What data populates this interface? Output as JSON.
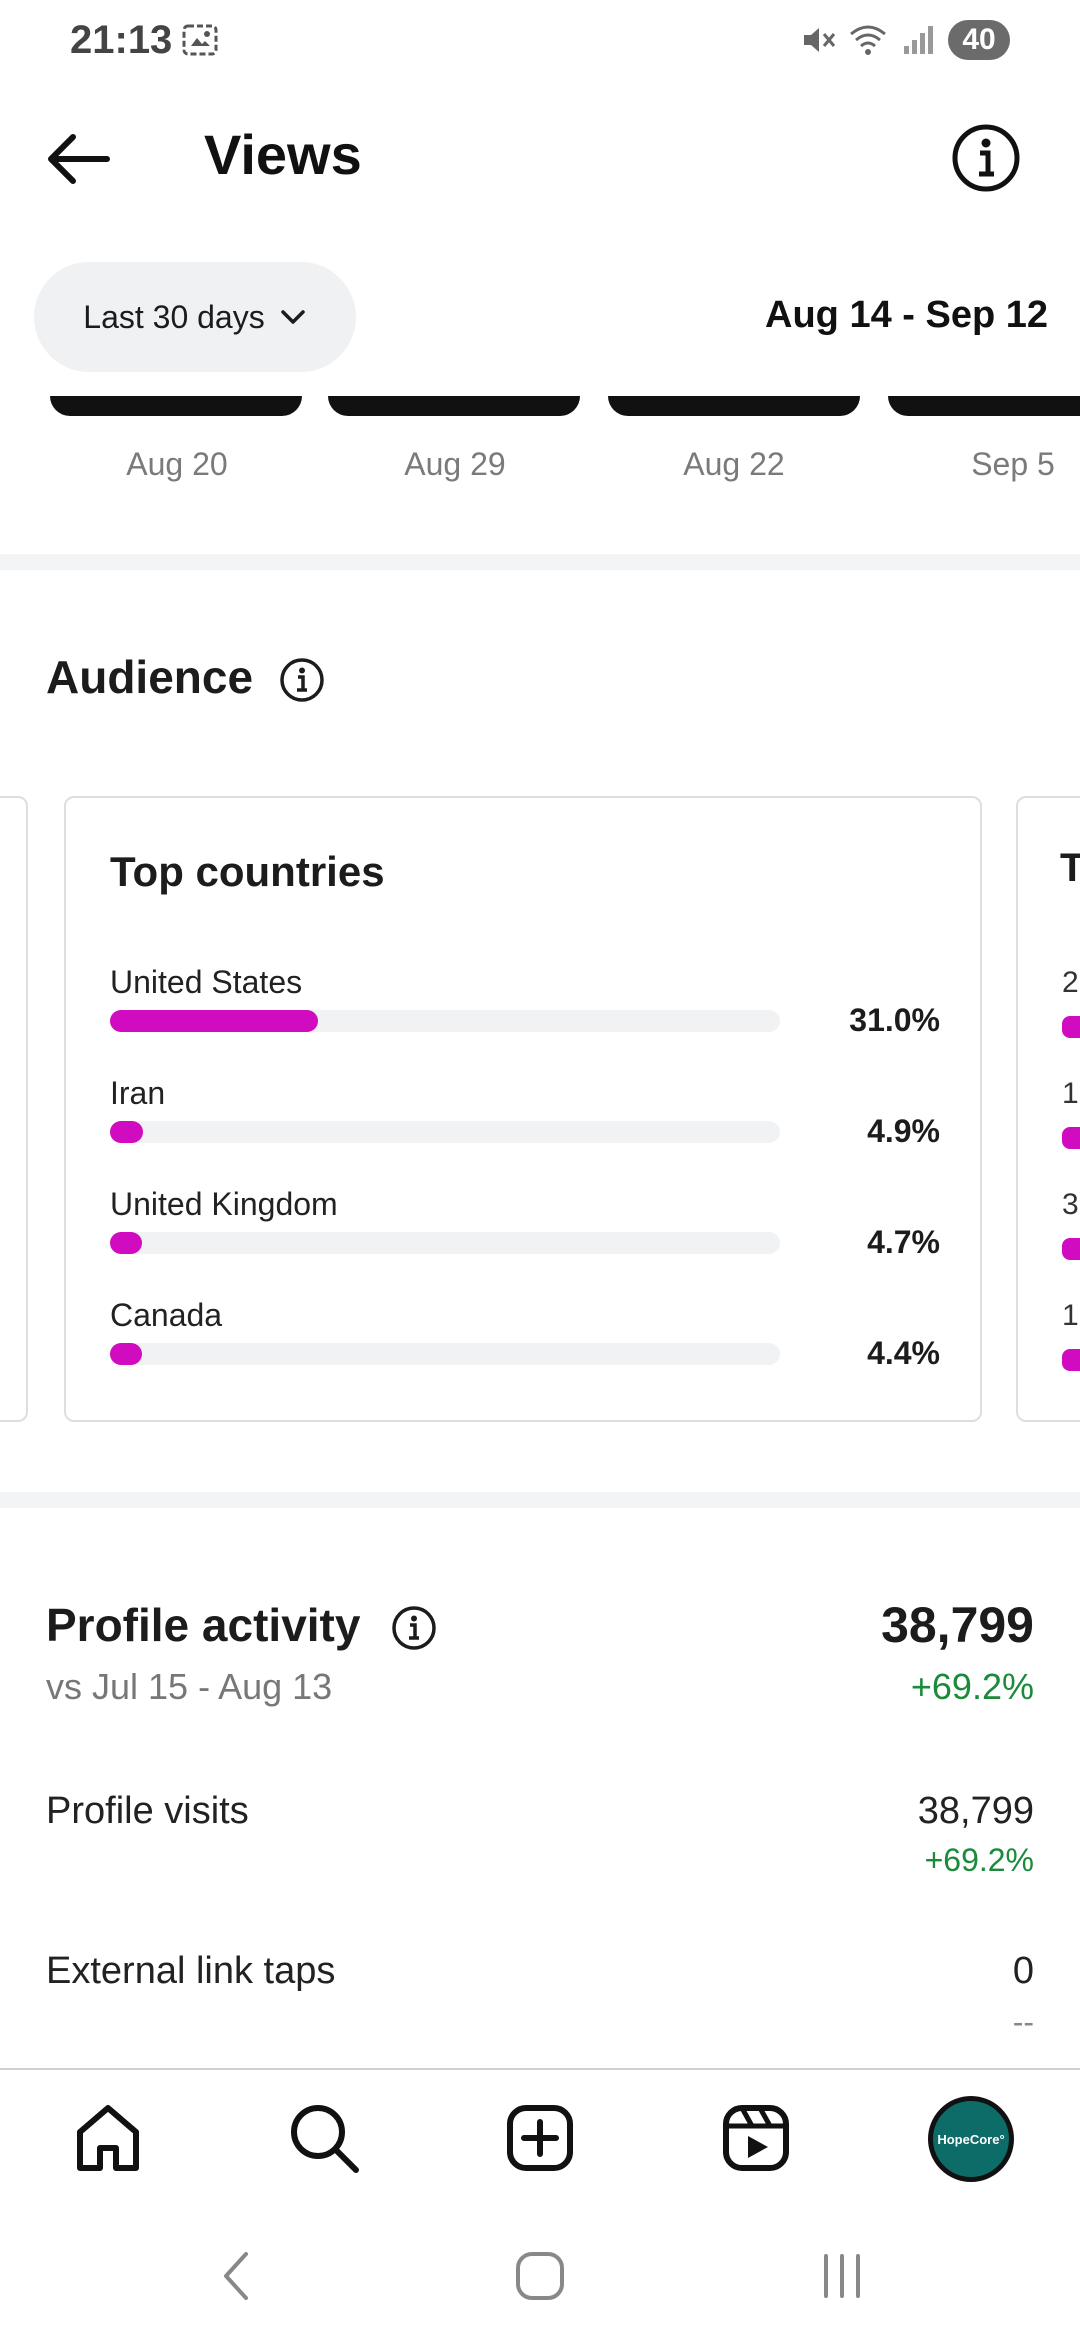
{
  "status_bar": {
    "time": "21:13",
    "battery": "40",
    "icons": [
      "gallery-icon",
      "mute-icon",
      "wifi-icon",
      "signal-icon"
    ]
  },
  "header": {
    "title": "Views",
    "back_icon": "arrow-left-icon",
    "info_icon": "info-icon"
  },
  "filter": {
    "range_label": "Last 30 days",
    "date_range": "Aug 14 - Sep 12"
  },
  "thumbnails": [
    {
      "date": "Aug 20"
    },
    {
      "date": "Aug 29"
    },
    {
      "date": "Aug 22"
    },
    {
      "date": "Sep 5"
    }
  ],
  "audience": {
    "title": "Audience",
    "card_title": "Top countries",
    "countries": [
      {
        "name": "United States",
        "percent_label": "31.0%",
        "value": 31.0
      },
      {
        "name": "Iran",
        "percent_label": "4.9%",
        "value": 4.9
      },
      {
        "name": "United Kingdom",
        "percent_label": "4.7%",
        "value": 4.7
      },
      {
        "name": "Canada",
        "percent_label": "4.4%",
        "value": 4.4
      }
    ],
    "next_card_peek": {
      "title_letter": "T",
      "digits": [
        "2",
        "1",
        "3",
        "1"
      ]
    }
  },
  "profile_activity": {
    "title": "Profile activity",
    "comparison": "vs Jul 15 - Aug 13",
    "total": "38,799",
    "total_change": "+69.2%",
    "metrics": [
      {
        "label": "Profile visits",
        "value": "38,799",
        "change": "+69.2%"
      },
      {
        "label": "External link taps",
        "value": "0",
        "change": "--"
      }
    ]
  },
  "bottom_nav": {
    "items": [
      "home-icon",
      "search-icon",
      "create-icon",
      "reels-icon"
    ],
    "avatar_text": "HopeCore°"
  },
  "colors": {
    "accent_bar": "#d10bc0",
    "positive": "#1b8a3a"
  }
}
